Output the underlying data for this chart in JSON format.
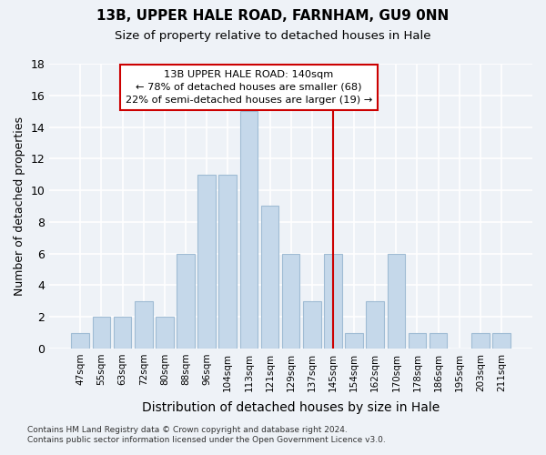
{
  "title": "13B, UPPER HALE ROAD, FARNHAM, GU9 0NN",
  "subtitle": "Size of property relative to detached houses in Hale",
  "xlabel": "Distribution of detached houses by size in Hale",
  "ylabel": "Number of detached properties",
  "categories": [
    "47sqm",
    "55sqm",
    "63sqm",
    "72sqm",
    "80sqm",
    "88sqm",
    "96sqm",
    "104sqm",
    "113sqm",
    "121sqm",
    "129sqm",
    "137sqm",
    "145sqm",
    "154sqm",
    "162sqm",
    "170sqm",
    "178sqm",
    "186sqm",
    "195sqm",
    "203sqm",
    "211sqm"
  ],
  "values": [
    1,
    2,
    2,
    3,
    2,
    6,
    11,
    11,
    15,
    9,
    6,
    3,
    6,
    1,
    3,
    6,
    1,
    1,
    0,
    1,
    1
  ],
  "bar_color": "#c5d8ea",
  "bar_edge_color": "#a0bcd4",
  "ylim": [
    0,
    18
  ],
  "yticks": [
    0,
    2,
    4,
    6,
    8,
    10,
    12,
    14,
    16,
    18
  ],
  "property_label": "13B UPPER HALE ROAD: 140sqm",
  "pct_smaller": "78% of detached houses are smaller (68)",
  "pct_larger": "22% of semi-detached houses are larger (19)",
  "vline_x_index": 12.0,
  "background_color": "#eef2f7",
  "grid_color": "#ffffff",
  "footer_line1": "Contains HM Land Registry data © Crown copyright and database right 2024.",
  "footer_line2": "Contains public sector information licensed under the Open Government Licence v3.0."
}
